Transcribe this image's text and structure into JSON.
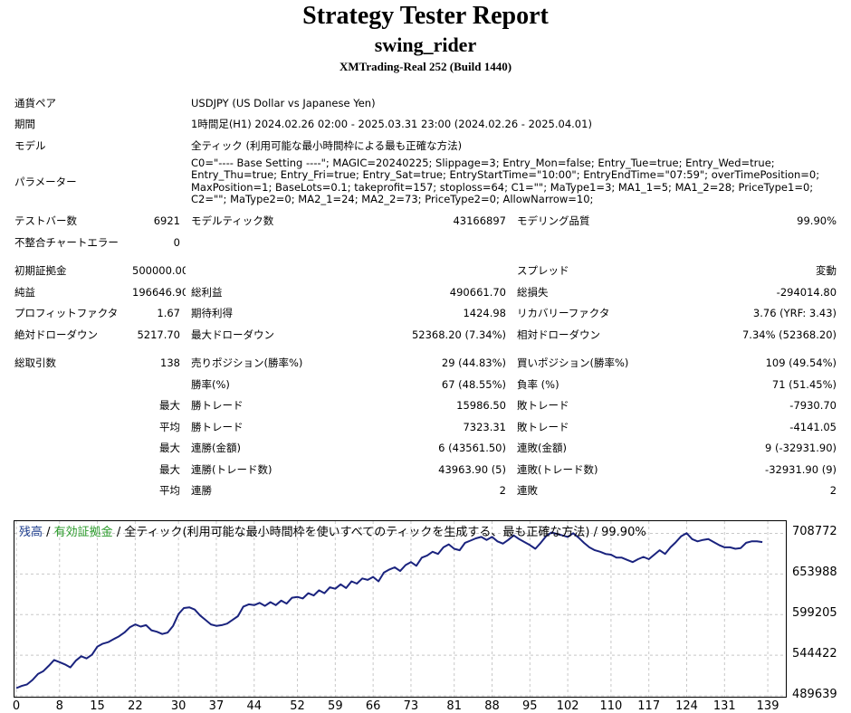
{
  "header": {
    "title": "Strategy Tester Report",
    "ea_name": "swing_rider",
    "server": "XMTrading-Real 252 (Build 1440)"
  },
  "info": {
    "symbol_label": "通貨ペア",
    "symbol_value": "USDJPY (US Dollar vs Japanese Yen)",
    "period_label": "期間",
    "period_value": "1時間足(H1) 2024.02.26 02:00 - 2025.03.31 23:00 (2024.02.26 - 2025.04.01)",
    "model_label": "モデル",
    "model_value": "全ティック (利用可能な最小時間枠による最も正確な方法)",
    "params_label": "パラメーター",
    "params_value": "C0=\"---- Base Setting ----\"; MAGIC=20240225; Slippage=3; Entry_Mon=false; Entry_Tue=true; Entry_Wed=true; Entry_Thu=true; Entry_Fri=true; Entry_Sat=true; EntryStartTime=\"10:00\"; EntryEndTime=\"07:59\"; overTimePosition=0; MaxPosition=1; BaseLots=0.1; takeprofit=157; stoploss=64; C1=\"\"; MaType1=3; MA1_1=5; MA1_2=28; PriceType1=0; C2=\"\"; MaType2=0; MA2_1=24; MA2_2=73; PriceType2=0; AllowNarrow=10;"
  },
  "stats": {
    "bars_label": "テストバー数",
    "bars_value": "6921",
    "ticks_label": "モデルティック数",
    "ticks_value": "43166897",
    "quality_label": "モデリング品質",
    "quality_value": "99.90%",
    "mismatch_label": "不整合チャートエラー",
    "mismatch_value": "0",
    "deposit_label": "初期証拠金",
    "deposit_value": "500000.00",
    "spread_label": "スプレッド",
    "spread_value": "変動",
    "net_label": "純益",
    "net_value": "196646.90",
    "gross_profit_label": "総利益",
    "gross_profit_value": "490661.70",
    "gross_loss_label": "総損失",
    "gross_loss_value": "-294014.80",
    "pf_label": "プロフィットファクタ",
    "pf_value": "1.67",
    "payoff_label": "期待利得",
    "payoff_value": "1424.98",
    "recovery_label": "リカバリーファクタ",
    "recovery_value": "3.76 (YRF: 3.43)",
    "abs_dd_label": "絶対ドローダウン",
    "abs_dd_value": "5217.70",
    "max_dd_label": "最大ドローダウン",
    "max_dd_value": "52368.20 (7.34%)",
    "rel_dd_label": "相対ドローダウン",
    "rel_dd_value": "7.34% (52368.20)",
    "trades_label": "総取引数",
    "trades_value": "138",
    "short_label": "売りポジション(勝率%)",
    "short_value": "29 (44.83%)",
    "long_label": "買いポジション(勝率%)",
    "long_value": "109 (49.54%)",
    "winrate_label": "勝率(%)",
    "winrate_value": "67 (48.55%)",
    "lossrate_label": "負率 (%)",
    "lossrate_value": "71 (51.45%)",
    "max_prefix": "最大",
    "avg_prefix": "平均",
    "largest_win_label": "勝トレード",
    "largest_win_value": "15986.50",
    "largest_loss_label": "敗トレード",
    "largest_loss_value": "-7930.70",
    "avg_win_label": "勝トレード",
    "avg_win_value": "7323.31",
    "avg_loss_label": "敗トレード",
    "avg_loss_value": "-4141.05",
    "max_consec_win_label": "連勝(金額)",
    "max_consec_win_value": "6 (43561.50)",
    "max_consec_loss_label": "連敗(金額)",
    "max_consec_loss_value": "9 (-32931.90)",
    "max_consec_profit_label": "連勝(トレード数)",
    "max_consec_profit_value": "43963.90 (5)",
    "max_consec_lossamt_label": "連敗(トレード数)",
    "max_consec_lossamt_value": "-32931.90 (9)",
    "avg_consec_win_label": "連勝",
    "avg_consec_win_value": "2",
    "avg_consec_loss_label": "連敗",
    "avg_consec_loss_value": "2"
  },
  "chart_legend": {
    "balance": "残高",
    "sep": " / ",
    "equity": "有効証拠金",
    "rest": " / 全ティック(利用可能な最小時間枠を使いすべてのティックを生成する、最も正確な方法) / 99.90%"
  },
  "colors": {
    "line": "#1a237e",
    "grid": "#c8c8c8",
    "balance_text": "#1f3f8f",
    "equity_text": "#2a9a2a"
  },
  "chart_data": {
    "type": "line",
    "title": "",
    "xlabel": "",
    "ylabel": "",
    "xlim": [
      0,
      142
    ],
    "ylim": [
      489639,
      724000
    ],
    "x_ticks": [
      "0",
      "8",
      "15",
      "22",
      "30",
      "37",
      "44",
      "52",
      "59",
      "66",
      "73",
      "81",
      "88",
      "95",
      "102",
      "110",
      "117",
      "124",
      "131",
      "139"
    ],
    "y_ticks": [
      "708772",
      "653988",
      "599205",
      "544422",
      "489639"
    ],
    "grid": true,
    "series": [
      {
        "x": [
          0,
          1,
          2,
          3,
          4,
          5,
          6,
          7,
          8,
          9,
          10,
          11,
          12,
          13,
          14,
          15,
          16,
          17,
          18,
          19,
          20,
          21,
          22,
          23,
          24,
          25,
          26,
          27,
          28,
          29,
          30,
          31,
          32,
          33,
          34,
          35,
          36,
          37,
          38,
          39,
          40,
          41,
          42,
          43,
          44,
          45,
          46,
          47,
          48,
          49,
          50,
          51,
          52,
          53,
          54,
          55,
          56,
          57,
          58,
          59,
          60,
          61,
          62,
          63,
          64,
          65,
          66,
          67,
          68,
          69,
          70,
          71,
          72,
          73,
          74,
          75,
          76,
          77,
          78,
          79,
          80,
          81,
          82,
          83,
          84,
          85,
          86,
          87,
          88,
          89,
          90,
          91,
          92,
          93,
          94,
          95,
          96,
          97,
          98,
          99,
          100,
          101,
          102,
          103,
          104,
          105,
          106,
          107,
          108,
          109,
          110,
          111,
          112,
          113,
          114,
          115,
          116,
          117,
          118,
          119,
          120,
          121,
          122,
          123,
          124,
          125,
          126,
          127,
          128,
          129,
          130,
          131,
          132,
          133,
          134,
          135,
          136,
          137,
          138
        ],
        "values": [
          500000,
          503000,
          505000,
          511000,
          519000,
          523000,
          530000,
          538000,
          535000,
          532000,
          528000,
          537000,
          543000,
          540000,
          545000,
          556000,
          560000,
          562000,
          566000,
          570000,
          575000,
          582000,
          586000,
          583000,
          585000,
          578000,
          576000,
          573000,
          575000,
          584000,
          600000,
          608000,
          609000,
          606000,
          598000,
          592000,
          586000,
          584000,
          585000,
          587000,
          592000,
          597000,
          610000,
          613000,
          612000,
          615000,
          611000,
          616000,
          612000,
          618000,
          614000,
          622000,
          623000,
          621000,
          628000,
          625000,
          632000,
          628000,
          636000,
          634000,
          640000,
          635000,
          644000,
          641000,
          648000,
          646000,
          650000,
          644000,
          656000,
          660000,
          663000,
          658000,
          666000,
          670000,
          665000,
          676000,
          679000,
          684000,
          681000,
          690000,
          694000,
          688000,
          686000,
          696000,
          699000,
          702000,
          704000,
          700000,
          704000,
          698000,
          695000,
          700000,
          706000,
          701000,
          697000,
          693000,
          688000,
          696000,
          705000,
          710000,
          708000,
          706000,
          704000,
          709000,
          703000,
          696000,
          690000,
          686000,
          684000,
          681000,
          680000,
          676000,
          676000,
          673000,
          670000,
          674000,
          677000,
          674000,
          680000,
          686000,
          681000,
          690000,
          697000,
          705000,
          709000,
          701000,
          698000,
          700000,
          701000,
          697000,
          693000,
          690000,
          690000,
          688000,
          689000,
          696000,
          698000,
          698000,
          697000
        ]
      }
    ]
  }
}
